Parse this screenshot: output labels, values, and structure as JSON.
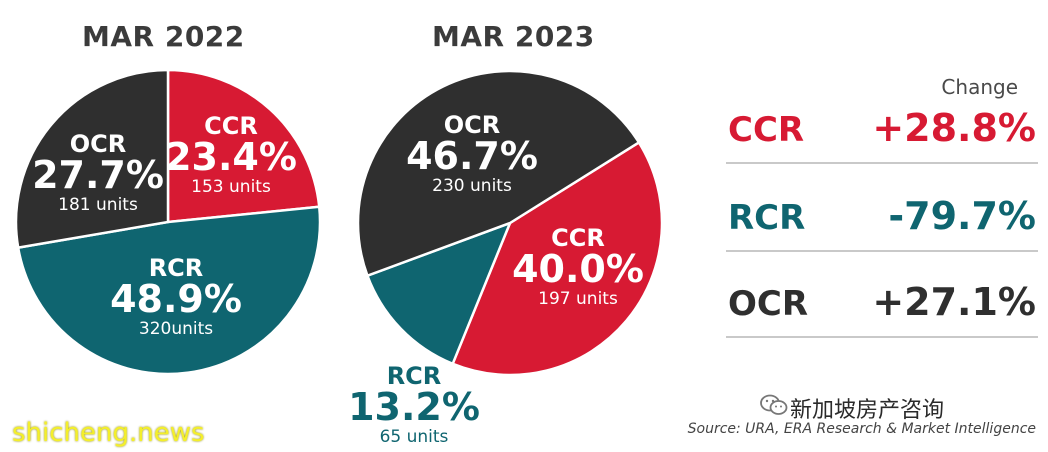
{
  "colors": {
    "ccr": "#d71a33",
    "rcr": "#0f6570",
    "ocr": "#2f2f2f",
    "title": "#3b3b3b"
  },
  "chart_data": [
    {
      "type": "pie",
      "title": "MAR 2022",
      "slices": [
        {
          "name": "CCR",
          "percent_label": "23.4%",
          "value": 23.4,
          "units": "153 units",
          "color": "#d71a33"
        },
        {
          "name": "RCR",
          "percent_label": "48.9%",
          "value": 48.9,
          "units": "320units",
          "color": "#0f6570"
        },
        {
          "name": "OCR",
          "percent_label": "27.7%",
          "value": 27.7,
          "units": "181 units",
          "color": "#2f2f2f"
        }
      ]
    },
    {
      "type": "pie",
      "title": "MAR 2023",
      "slices": [
        {
          "name": "CCR",
          "percent_label": "40.0%",
          "value": 40.0,
          "units": "197 units",
          "color": "#d71a33"
        },
        {
          "name": "RCR",
          "percent_label": "13.2%",
          "value": 13.2,
          "units": "65 units",
          "color": "#0f6570"
        },
        {
          "name": "OCR",
          "percent_label": "46.7%",
          "value": 46.7,
          "units": "230 units",
          "color": "#2f2f2f"
        }
      ]
    }
  ],
  "change": {
    "header": "Change",
    "rows": [
      {
        "name": "CCR",
        "value": "+28.8%",
        "color": "#d71a33",
        "value_color": "#d71a33"
      },
      {
        "name": "RCR",
        "value": "-79.7%",
        "color": "#0f6570",
        "value_color": "#0f6570"
      },
      {
        "name": "OCR",
        "value": "+27.1%",
        "color": "#2f2f2f",
        "value_color": "#2f2f2f"
      }
    ]
  },
  "footer": {
    "wechat_name": "新加坡房产咨询",
    "source": "Source: URA, ERA Research & Market Intelligence",
    "watermark": "shicheng.news"
  }
}
